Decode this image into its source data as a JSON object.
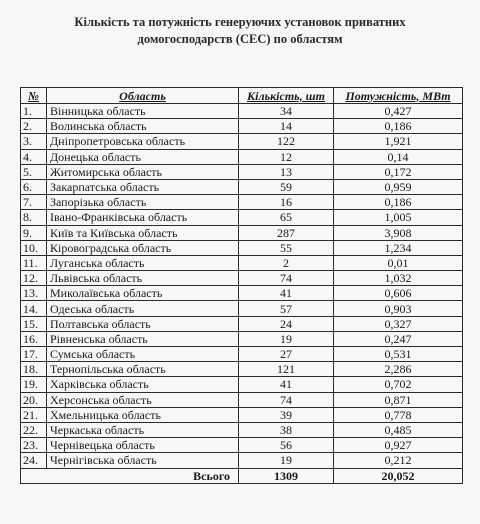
{
  "title_line1": "Кількість та потужність генеруючих установок приватних",
  "title_line2": "домогосподарств (СЕС) по областям",
  "headers": {
    "num": "№",
    "region": "Область",
    "count": "Кількість, шт",
    "power": "Потужність, МВт"
  },
  "rows": [
    {
      "n": "1.",
      "region": "Вінницька область",
      "count": "34",
      "power": "0,427"
    },
    {
      "n": "2.",
      "region": "Волинська область",
      "count": "14",
      "power": "0,186"
    },
    {
      "n": "3.",
      "region": "Дніпропетровська область",
      "count": "122",
      "power": "1,921"
    },
    {
      "n": "4.",
      "region": "Донецька область",
      "count": "12",
      "power": "0,14"
    },
    {
      "n": "5.",
      "region": "Житомирська область",
      "count": "13",
      "power": "0,172"
    },
    {
      "n": "6.",
      "region": "Закарпатська область",
      "count": "59",
      "power": "0,959"
    },
    {
      "n": "7.",
      "region": "Запорізька область",
      "count": "16",
      "power": "0,186"
    },
    {
      "n": "8.",
      "region": "Івано-Франківська область",
      "count": "65",
      "power": "1,005"
    },
    {
      "n": "9.",
      "region": "Київ та Київська область",
      "count": "287",
      "power": "3,908"
    },
    {
      "n": "10.",
      "region": "Кіровоградська область",
      "count": "55",
      "power": "1,234"
    },
    {
      "n": "11.",
      "region": "Луганська область",
      "count": "2",
      "power": "0,01"
    },
    {
      "n": "12.",
      "region": "Львівська область",
      "count": "74",
      "power": "1,032"
    },
    {
      "n": "13.",
      "region": "Миколаївська область",
      "count": "41",
      "power": "0,606"
    },
    {
      "n": "14.",
      "region": "Одеська область",
      "count": "57",
      "power": "0,903"
    },
    {
      "n": "15.",
      "region": "Полтавська область",
      "count": "24",
      "power": "0,327"
    },
    {
      "n": "16.",
      "region": "Рівненська область",
      "count": "19",
      "power": "0,247"
    },
    {
      "n": "17.",
      "region": "Сумська область",
      "count": "27",
      "power": "0,531"
    },
    {
      "n": "18.",
      "region": "Тернопільська область",
      "count": "121",
      "power": "2,286"
    },
    {
      "n": "19.",
      "region": "Харківська область",
      "count": "41",
      "power": "0,702"
    },
    {
      "n": "20.",
      "region": "Херсонська область",
      "count": "74",
      "power": "0,871"
    },
    {
      "n": "21.",
      "region": "Хмельницька область",
      "count": "39",
      "power": "0,778"
    },
    {
      "n": "22.",
      "region": "Черкаська область",
      "count": "38",
      "power": "0,485"
    },
    {
      "n": "23.",
      "region": "Чернівецька область",
      "count": "56",
      "power": "0,927"
    },
    {
      "n": "24.",
      "region": "Чернігівська область",
      "count": "19",
      "power": "0,212"
    }
  ],
  "total": {
    "label": "Всього",
    "count": "1309",
    "power": "20,052"
  }
}
